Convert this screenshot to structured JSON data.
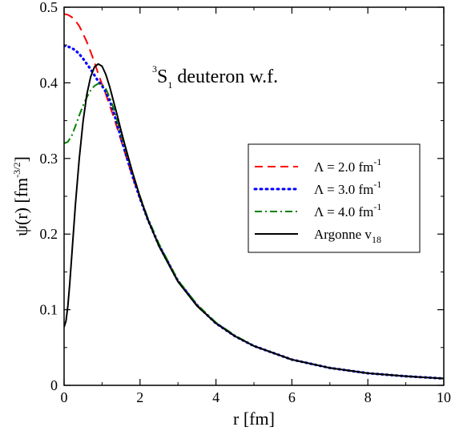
{
  "chart_data": {
    "type": "line",
    "annotation": {
      "pre": "3",
      "main": "S",
      "sub": "1",
      "rest": " deuteron w.f."
    },
    "xlabel": "r [fm]",
    "ylabel": {
      "main": "ψ(r) [fm",
      "sup": "-3/2",
      "close": "]"
    },
    "xlim": [
      0,
      10
    ],
    "ylim": [
      0,
      0.5
    ],
    "xticks": [
      0,
      2,
      4,
      6,
      8,
      10
    ],
    "yticks": [
      0,
      0.1,
      0.2,
      0.3,
      0.4,
      0.5
    ],
    "xtick_labels": [
      "0",
      "2",
      "4",
      "6",
      "8",
      "10"
    ],
    "ytick_labels": [
      "0",
      "0.1",
      "0.2",
      "0.3",
      "0.4",
      "0.5"
    ],
    "grid": false,
    "legend_position": "right",
    "series": [
      {
        "name": "Λ = 2.0 fm-1",
        "label": {
          "main": "Λ = 2.0 fm",
          "sup": "-1"
        },
        "color": "#ff0000",
        "style": "dashed",
        "x": [
          0,
          0.1,
          0.2,
          0.3,
          0.4,
          0.5,
          0.6,
          0.7,
          0.8,
          0.9,
          1.0,
          1.1,
          1.2,
          1.3,
          1.4,
          1.5,
          1.6,
          1.8,
          2.0,
          2.2,
          2.5,
          3.0,
          3.5,
          4.0,
          4.5,
          5.0,
          6.0,
          7.0,
          8.0,
          9.0,
          10.0
        ],
        "y": [
          0.491,
          0.49,
          0.487,
          0.482,
          0.475,
          0.465,
          0.454,
          0.441,
          0.427,
          0.412,
          0.398,
          0.385,
          0.37,
          0.356,
          0.34,
          0.324,
          0.308,
          0.276,
          0.247,
          0.22,
          0.185,
          0.138,
          0.106,
          0.082,
          0.065,
          0.052,
          0.034,
          0.023,
          0.016,
          0.012,
          0.009
        ]
      },
      {
        "name": "Λ = 3.0 fm-1",
        "label": {
          "main": "Λ = 3.0 fm",
          "sup": "-1"
        },
        "color": "#0000ff",
        "style": "dotted",
        "x": [
          0,
          0.1,
          0.2,
          0.3,
          0.4,
          0.5,
          0.6,
          0.7,
          0.8,
          0.9,
          1.0,
          1.1,
          1.2,
          1.3,
          1.4,
          1.5,
          1.6,
          1.8,
          2.0,
          2.2,
          2.5,
          3.0,
          3.5,
          4.0,
          4.5,
          5.0,
          6.0,
          7.0,
          8.0,
          9.0,
          10.0
        ],
        "y": [
          0.449,
          0.448,
          0.446,
          0.443,
          0.438,
          0.432,
          0.425,
          0.418,
          0.41,
          0.402,
          0.396,
          0.388,
          0.377,
          0.362,
          0.345,
          0.327,
          0.31,
          0.277,
          0.247,
          0.22,
          0.185,
          0.138,
          0.106,
          0.082,
          0.065,
          0.052,
          0.034,
          0.023,
          0.016,
          0.012,
          0.009
        ]
      },
      {
        "name": "Λ = 4.0 fm-1",
        "label": {
          "main": "Λ = 4.0 fm",
          "sup": "-1"
        },
        "color": "#008000",
        "style": "dashdot",
        "x": [
          0,
          0.1,
          0.2,
          0.3,
          0.4,
          0.5,
          0.6,
          0.7,
          0.8,
          0.9,
          1.0,
          1.1,
          1.2,
          1.3,
          1.4,
          1.5,
          1.6,
          1.8,
          2.0,
          2.2,
          2.5,
          3.0,
          3.5,
          4.0,
          4.5,
          5.0,
          6.0,
          7.0,
          8.0,
          9.0,
          10.0
        ],
        "y": [
          0.32,
          0.322,
          0.33,
          0.343,
          0.357,
          0.37,
          0.381,
          0.39,
          0.396,
          0.399,
          0.398,
          0.392,
          0.381,
          0.367,
          0.35,
          0.332,
          0.315,
          0.281,
          0.25,
          0.222,
          0.187,
          0.139,
          0.107,
          0.083,
          0.066,
          0.052,
          0.034,
          0.023,
          0.016,
          0.012,
          0.009
        ]
      },
      {
        "name": "Argonne v18",
        "label": {
          "main": "Argonne v",
          "sub": "18"
        },
        "color": "#000000",
        "style": "solid",
        "x": [
          0,
          0.05,
          0.1,
          0.15,
          0.2,
          0.3,
          0.4,
          0.5,
          0.6,
          0.7,
          0.8,
          0.9,
          1.0,
          1.1,
          1.2,
          1.3,
          1.4,
          1.5,
          1.6,
          1.8,
          2.0,
          2.2,
          2.5,
          3.0,
          3.5,
          4.0,
          4.5,
          5.0,
          6.0,
          7.0,
          8.0,
          9.0,
          10.0
        ],
        "y": [
          0.077,
          0.085,
          0.105,
          0.135,
          0.17,
          0.24,
          0.3,
          0.349,
          0.385,
          0.408,
          0.421,
          0.425,
          0.422,
          0.411,
          0.395,
          0.376,
          0.357,
          0.337,
          0.318,
          0.282,
          0.249,
          0.22,
          0.184,
          0.137,
          0.105,
          0.082,
          0.065,
          0.052,
          0.034,
          0.023,
          0.016,
          0.012,
          0.009
        ]
      }
    ]
  }
}
